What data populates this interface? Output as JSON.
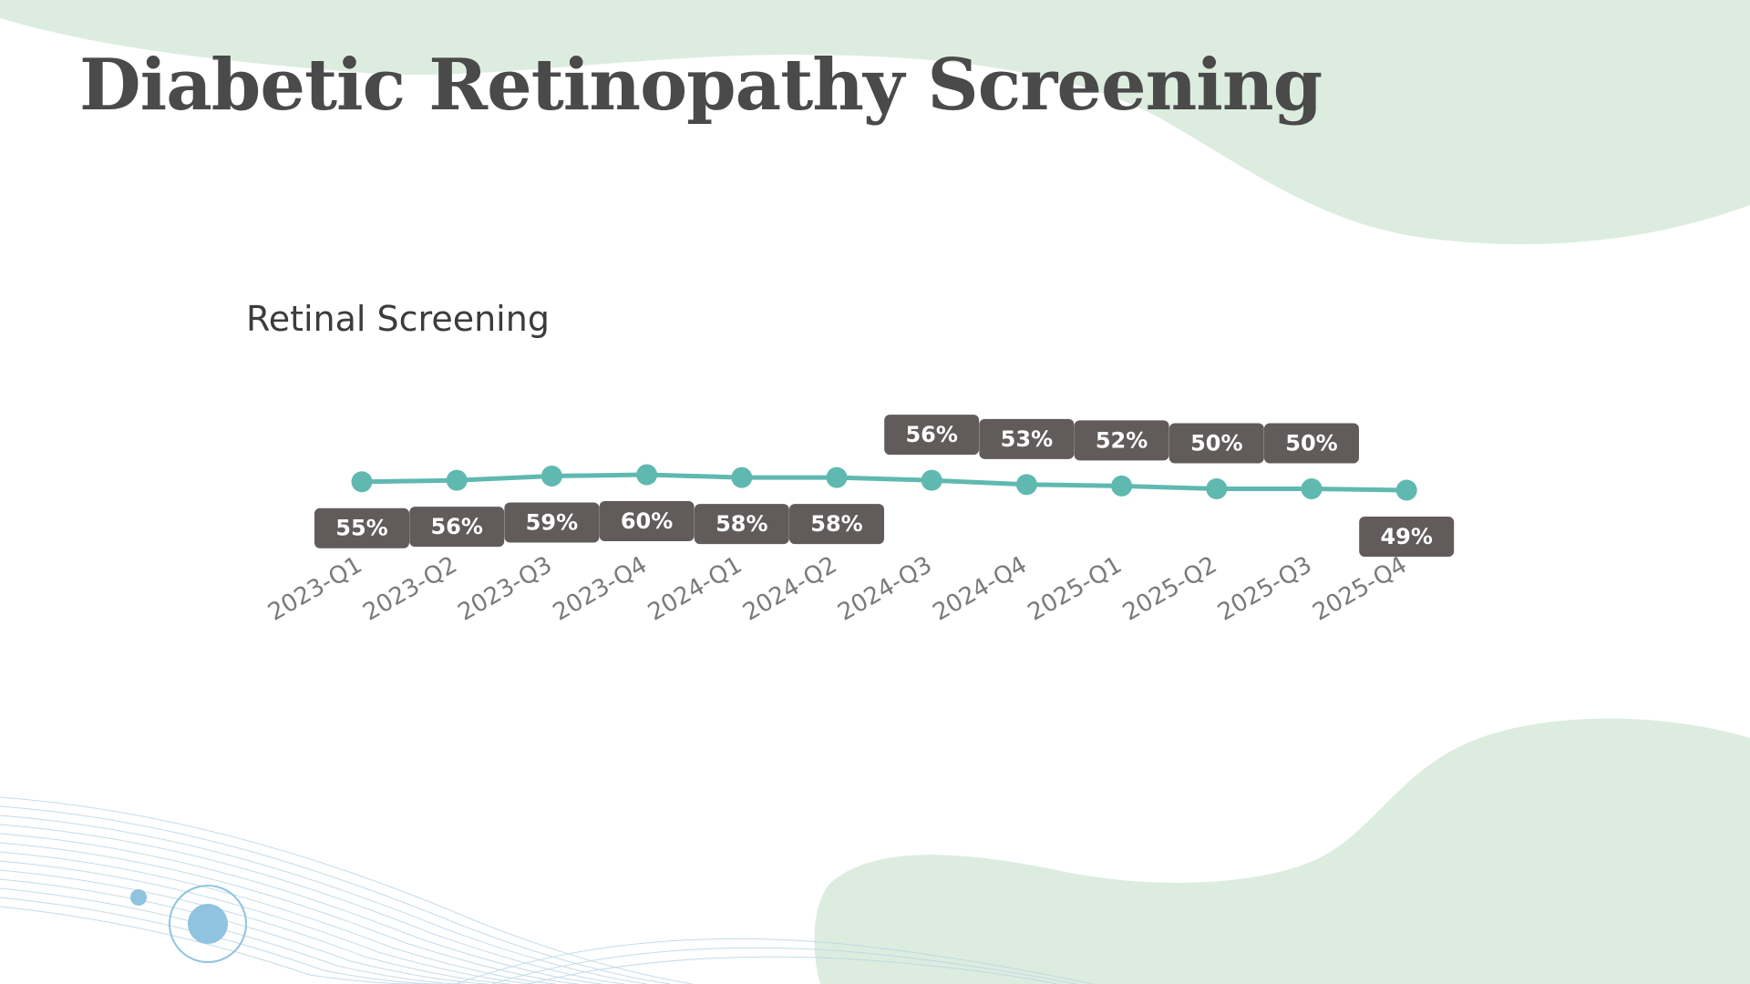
{
  "slide": {
    "title": "Diabetic Retinopathy Screening"
  },
  "colors": {
    "line": "#5fb9b0",
    "label_bg": "#615b5b",
    "label_text": "#ffffff",
    "tick_text": "#7a7a7a",
    "title_text": "#4a4a4a",
    "decor_green": "#dcede0",
    "decor_blue": "#8fc3e0"
  },
  "chart_data": {
    "type": "line",
    "title": "Retinal Screening",
    "categories": [
      "2023-Q1",
      "2023-Q2",
      "2023-Q3",
      "2023-Q4",
      "2024-Q1",
      "2024-Q2",
      "2024-Q3",
      "2024-Q4",
      "2025-Q1",
      "2025-Q2",
      "2025-Q3",
      "2025-Q4"
    ],
    "values": [
      55,
      56,
      59,
      60,
      58,
      58,
      56,
      53,
      52,
      50,
      50,
      49
    ],
    "data_labels": [
      "55%",
      "56%",
      "59%",
      "60%",
      "58%",
      "58%",
      "56%",
      "53%",
      "52%",
      "50%",
      "50%",
      "49%"
    ],
    "label_positions": [
      "below",
      "below",
      "below",
      "below",
      "below",
      "below",
      "above",
      "above",
      "above",
      "above",
      "above",
      "below"
    ],
    "xlabel": "",
    "ylabel": "",
    "ylim": [
      0,
      100
    ],
    "grid": false,
    "legend": "none"
  }
}
